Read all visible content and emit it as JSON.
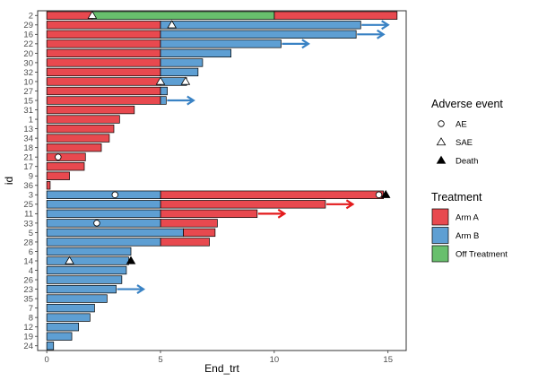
{
  "chart_data": {
    "type": "bar",
    "orientation": "horizontal",
    "xlabel": "End_trt",
    "ylabel": "id",
    "xlim": [
      -0.4,
      15.8
    ],
    "xticks": [
      0,
      5,
      10,
      15
    ],
    "grid": false,
    "legend_position": "right",
    "colors": {
      "Arm A": "#e8494f",
      "Arm B": "#5e9fd3",
      "Off Treatment": "#68bf6d",
      "arrow_arm_a": "#e31a1c",
      "arrow_arm_b": "#3982c4",
      "marker": "#000000"
    },
    "categories": [
      "2",
      "29",
      "16",
      "22",
      "20",
      "30",
      "32",
      "10",
      "27",
      "15",
      "31",
      "1",
      "13",
      "34",
      "18",
      "21",
      "17",
      "9",
      "36",
      "3",
      "25",
      "11",
      "33",
      "5",
      "28",
      "6",
      "14",
      "4",
      "26",
      "23",
      "35",
      "7",
      "8",
      "12",
      "19",
      "24"
    ],
    "series": [
      {
        "name": "Arm A",
        "segments": [
          {
            "id": "2",
            "start": 0,
            "end": 2.0
          },
          {
            "id": "2",
            "start": 10.0,
            "end": 15.4
          },
          {
            "id": "29",
            "start": 0,
            "end": 5.0
          },
          {
            "id": "16",
            "start": 0,
            "end": 5.0
          },
          {
            "id": "22",
            "start": 0,
            "end": 5.0
          },
          {
            "id": "20",
            "start": 0,
            "end": 5.0
          },
          {
            "id": "30",
            "start": 0,
            "end": 5.0
          },
          {
            "id": "32",
            "start": 0,
            "end": 5.0
          },
          {
            "id": "10",
            "start": 0,
            "end": 5.0
          },
          {
            "id": "27",
            "start": 0,
            "end": 5.0
          },
          {
            "id": "15",
            "start": 0,
            "end": 5.0
          },
          {
            "id": "31",
            "start": 0,
            "end": 3.85
          },
          {
            "id": "1",
            "start": 0,
            "end": 3.2
          },
          {
            "id": "13",
            "start": 0,
            "end": 2.95
          },
          {
            "id": "34",
            "start": 0,
            "end": 2.75
          },
          {
            "id": "18",
            "start": 0,
            "end": 2.4
          },
          {
            "id": "21",
            "start": 0,
            "end": 1.7
          },
          {
            "id": "17",
            "start": 0,
            "end": 1.65
          },
          {
            "id": "9",
            "start": 0,
            "end": 1.0
          },
          {
            "id": "36",
            "start": 0,
            "end": 0.15
          },
          {
            "id": "3",
            "start": 5.0,
            "end": 14.8
          },
          {
            "id": "25",
            "start": 5.0,
            "end": 12.25
          },
          {
            "id": "11",
            "start": 5.0,
            "end": 9.25
          },
          {
            "id": "33",
            "start": 5.0,
            "end": 7.5
          },
          {
            "id": "5",
            "start": 6.0,
            "end": 7.4
          },
          {
            "id": "28",
            "start": 5.0,
            "end": 7.15
          }
        ]
      },
      {
        "name": "Arm B",
        "segments": [
          {
            "id": "29",
            "start": 5.0,
            "end": 13.8
          },
          {
            "id": "16",
            "start": 5.0,
            "end": 13.6
          },
          {
            "id": "22",
            "start": 5.0,
            "end": 10.3
          },
          {
            "id": "20",
            "start": 5.0,
            "end": 8.1
          },
          {
            "id": "30",
            "start": 5.0,
            "end": 6.85
          },
          {
            "id": "32",
            "start": 5.0,
            "end": 6.65
          },
          {
            "id": "10",
            "start": 5.0,
            "end": 6.15
          },
          {
            "id": "27",
            "start": 5.0,
            "end": 5.3
          },
          {
            "id": "15",
            "start": 5.0,
            "end": 5.25
          },
          {
            "id": "3",
            "start": 0,
            "end": 5.0
          },
          {
            "id": "25",
            "start": 0,
            "end": 5.0
          },
          {
            "id": "11",
            "start": 0,
            "end": 5.0
          },
          {
            "id": "33",
            "start": 0,
            "end": 5.0
          },
          {
            "id": "5",
            "start": 0,
            "end": 6.0
          },
          {
            "id": "28",
            "start": 0,
            "end": 5.0
          },
          {
            "id": "6",
            "start": 0,
            "end": 3.7
          },
          {
            "id": "14",
            "start": 0,
            "end": 3.6
          },
          {
            "id": "4",
            "start": 0,
            "end": 3.5
          },
          {
            "id": "26",
            "start": 0,
            "end": 3.3
          },
          {
            "id": "23",
            "start": 0,
            "end": 3.05
          },
          {
            "id": "35",
            "start": 0,
            "end": 2.65
          },
          {
            "id": "7",
            "start": 0,
            "end": 2.1
          },
          {
            "id": "8",
            "start": 0,
            "end": 1.9
          },
          {
            "id": "12",
            "start": 0,
            "end": 1.4
          },
          {
            "id": "19",
            "start": 0,
            "end": 1.1
          },
          {
            "id": "24",
            "start": 0,
            "end": 0.3
          }
        ]
      },
      {
        "name": "Off Treatment",
        "segments": [
          {
            "id": "2",
            "start": 2.0,
            "end": 10.0
          }
        ]
      }
    ],
    "ongoing_arrows": [
      {
        "id": "29",
        "from": 13.8,
        "to": 15.0,
        "arm": "Arm B"
      },
      {
        "id": "16",
        "from": 13.6,
        "to": 14.8,
        "arm": "Arm B"
      },
      {
        "id": "22",
        "from": 10.3,
        "to": 11.5,
        "arm": "Arm B"
      },
      {
        "id": "15",
        "from": 5.25,
        "to": 6.45,
        "arm": "Arm B"
      },
      {
        "id": "25",
        "from": 12.25,
        "to": 13.45,
        "arm": "Arm A"
      },
      {
        "id": "11",
        "from": 9.25,
        "to": 10.45,
        "arm": "Arm A"
      },
      {
        "id": "23",
        "from": 3.05,
        "to": 4.25,
        "arm": "Arm B"
      }
    ],
    "events": [
      {
        "id": "2",
        "x": 2.0,
        "type": "SAE"
      },
      {
        "id": "29",
        "x": 5.5,
        "type": "SAE"
      },
      {
        "id": "10",
        "x": 5.0,
        "type": "SAE"
      },
      {
        "id": "10",
        "x": 6.1,
        "type": "SAE"
      },
      {
        "id": "21",
        "x": 0.5,
        "type": "AE"
      },
      {
        "id": "3",
        "x": 3.0,
        "type": "AE"
      },
      {
        "id": "3",
        "x": 14.6,
        "type": "AE"
      },
      {
        "id": "3",
        "x": 14.9,
        "type": "Death"
      },
      {
        "id": "33",
        "x": 2.2,
        "type": "AE"
      },
      {
        "id": "14",
        "x": 1.0,
        "type": "SAE"
      },
      {
        "id": "14",
        "x": 3.7,
        "type": "Death"
      }
    ],
    "legends": [
      {
        "title": "Adverse event",
        "entries": [
          "AE",
          "SAE",
          "Death"
        ]
      },
      {
        "title": "Treatment",
        "entries": [
          "Arm A",
          "Arm B",
          "Off Treatment"
        ]
      }
    ]
  }
}
